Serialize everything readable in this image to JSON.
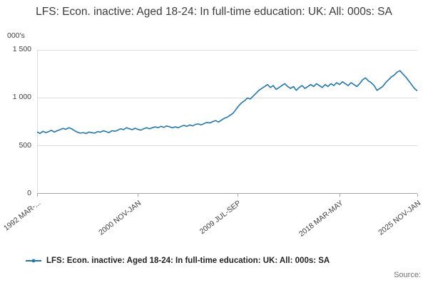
{
  "chart_data": {
    "type": "line",
    "title": "LFS: Econ. inactive: Aged 18-24: In full-time education: UK: All: 000s: SA",
    "ylabel": "000's",
    "ylim": [
      0,
      1500
    ],
    "grid": "horizontal",
    "legend_position": "bottom-left",
    "line_color": "#1f77b4",
    "y_tick_labels": [
      "1 500",
      "1 000",
      "500",
      "0"
    ],
    "x_tick_labels": [
      "1992 MAR-...",
      "2000 NOV-JAN",
      "2009 JUL-SEP",
      "2018 MAR-MAY",
      "2025 NOV-JAN"
    ],
    "x_tick_positions": [
      0,
      0.265,
      0.527,
      0.796,
      1.0
    ],
    "series": [
      {
        "name": "LFS: Econ. inactive: Aged 18-24: In full-time education: UK: All: 000s: SA",
        "x_start": "1992 MAR-MAY",
        "x_end": "2025 NOV-JAN",
        "values": [
          645,
          628,
          652,
          638,
          648,
          662,
          643,
          658,
          668,
          682,
          672,
          688,
          678,
          658,
          642,
          632,
          638,
          628,
          644,
          637,
          633,
          648,
          642,
          657,
          648,
          638,
          658,
          652,
          663,
          678,
          668,
          688,
          678,
          668,
          683,
          672,
          663,
          678,
          688,
          678,
          688,
          698,
          688,
          703,
          693,
          708,
          698,
          688,
          698,
          688,
          703,
          713,
          703,
          718,
          708,
          723,
          728,
          718,
          733,
          743,
          738,
          753,
          763,
          748,
          768,
          788,
          798,
          818,
          838,
          878,
          918,
          948,
          968,
          998,
          988,
          1018,
          1048,
          1078,
          1098,
          1118,
          1138,
          1108,
          1128,
          1088,
          1108,
          1128,
          1148,
          1118,
          1098,
          1118,
          1078,
          1108,
          1128,
          1098,
          1118,
          1138,
          1118,
          1148,
          1128,
          1108,
          1138,
          1118,
          1148,
          1128,
          1158,
          1138,
          1168,
          1148,
          1128,
          1158,
          1138,
          1118,
          1148,
          1188,
          1208,
          1178,
          1158,
          1128,
          1078,
          1098,
          1118,
          1158,
          1188,
          1218,
          1238,
          1268,
          1283,
          1248,
          1218,
          1178,
          1138,
          1098,
          1072
        ]
      }
    ]
  },
  "legend": {
    "label": "LFS: Econ. inactive: Aged 18-24: In full-time education: UK: All: 000s: SA"
  },
  "footer": {
    "source_label": "Source:"
  }
}
